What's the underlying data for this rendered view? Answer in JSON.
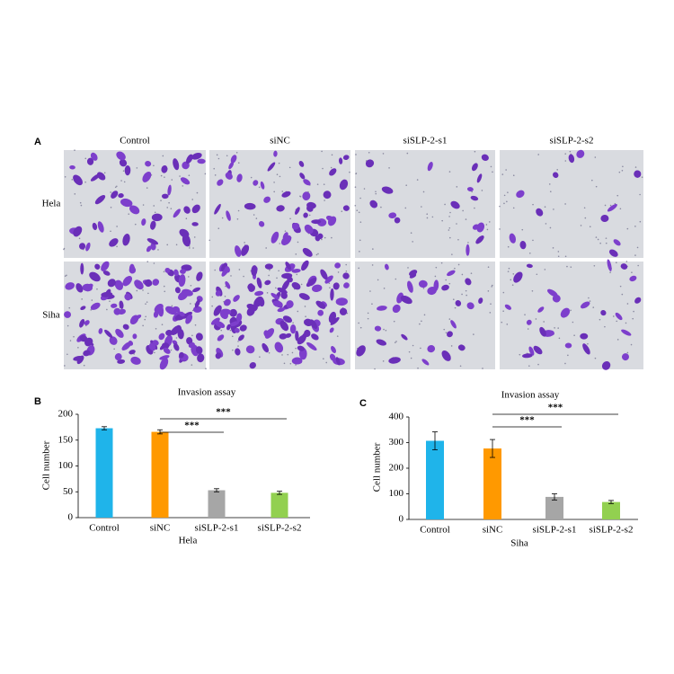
{
  "panel_a": {
    "label": "A",
    "columns": [
      "Control",
      "siNC",
      "siSLP-2-s1",
      "siSLP-2-s2"
    ],
    "rows": [
      "Hela",
      "Siha"
    ]
  },
  "chart_data": [
    {
      "type": "bar",
      "panel_label": "B",
      "title": "Invasion assay",
      "ylabel": "Cell number",
      "xlabel": "Hela",
      "categories": [
        "Control",
        "siNC",
        "siSLP-2-s1",
        "siSLP-2-s2"
      ],
      "values": [
        173,
        166,
        53,
        48
      ],
      "errors": [
        3,
        4,
        3,
        3
      ],
      "colors": [
        "#1fb4ea",
        "#ff9900",
        "#a6a6a6",
        "#92d050"
      ],
      "ylim": [
        0,
        200
      ],
      "yticks": [
        0,
        50,
        100,
        150,
        200
      ],
      "annotations": [
        {
          "text": "***",
          "from": "siNC",
          "to": "siSLP-2-s2"
        },
        {
          "text": "***",
          "from": "siNC",
          "to": "siSLP-2-s1"
        }
      ]
    },
    {
      "type": "bar",
      "panel_label": "C",
      "title": "Invasion assay",
      "ylabel": "Cell number",
      "xlabel": "Siha",
      "categories": [
        "Control",
        "siNC",
        "siSLP-2-s1",
        "siSLP-2-s2"
      ],
      "values": [
        307,
        277,
        88,
        68
      ],
      "errors": [
        35,
        35,
        12,
        6
      ],
      "colors": [
        "#1fb4ea",
        "#ff9900",
        "#a6a6a6",
        "#92d050"
      ],
      "ylim": [
        0,
        400
      ],
      "yticks": [
        0,
        100,
        200,
        300,
        400
      ],
      "annotations": [
        {
          "text": "***",
          "from": "siNC",
          "to": "siSLP-2-s2"
        },
        {
          "text": "***",
          "from": "siNC",
          "to": "siSLP-2-s1"
        }
      ]
    }
  ]
}
